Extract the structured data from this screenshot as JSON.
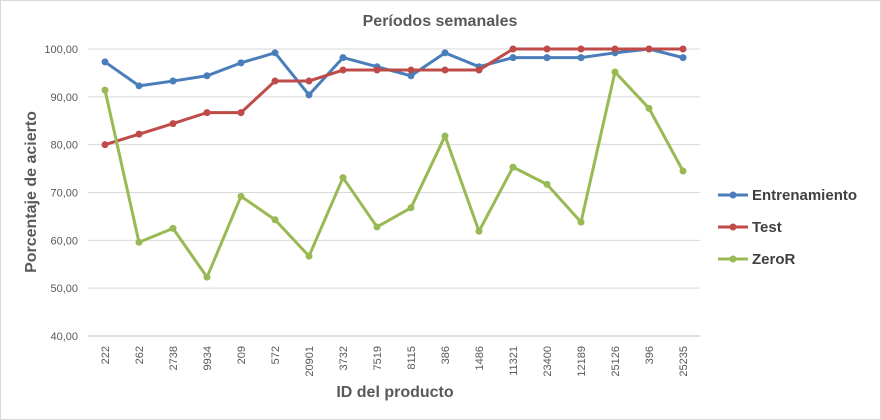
{
  "chart_data": {
    "type": "line",
    "title": "Períodos semanales",
    "xlabel": "ID del producto",
    "ylabel": "Porcentaje de acierto",
    "ylim": [
      40,
      100
    ],
    "y_ticks": [
      "40,00",
      "50,00",
      "60,00",
      "70,00",
      "80,00",
      "90,00",
      "100,00"
    ],
    "categories": [
      "222",
      "262",
      "2738",
      "9934",
      "209",
      "572",
      "20901",
      "3732",
      "7519",
      "8115",
      "386",
      "1486",
      "11321",
      "23400",
      "12189",
      "25126",
      "396",
      "25235"
    ],
    "series": [
      {
        "name": "Entrenamiento",
        "color": "#4a7ebb",
        "values": [
          97.3,
          92.3,
          93.3,
          94.4,
          97.1,
          99.2,
          90.4,
          98.2,
          96.3,
          94.4,
          99.2,
          96.3,
          98.2,
          98.2,
          98.2,
          99.2,
          100,
          98.2
        ]
      },
      {
        "name": "Test",
        "color": "#be4b48",
        "values": [
          80.0,
          82.2,
          84.4,
          86.7,
          86.7,
          93.3,
          93.3,
          95.6,
          95.6,
          95.6,
          95.6,
          95.6,
          100,
          100,
          100,
          100,
          100,
          100
        ]
      },
      {
        "name": "ZeroR",
        "color": "#98b954",
        "values": [
          91.4,
          59.6,
          62.5,
          52.3,
          69.2,
          64.3,
          56.7,
          73.1,
          62.8,
          66.8,
          81.8,
          61.9,
          75.3,
          71.7,
          63.8,
          95.2,
          87.6,
          74.5
        ]
      }
    ],
    "grid": "horizontal",
    "legend": "right"
  }
}
